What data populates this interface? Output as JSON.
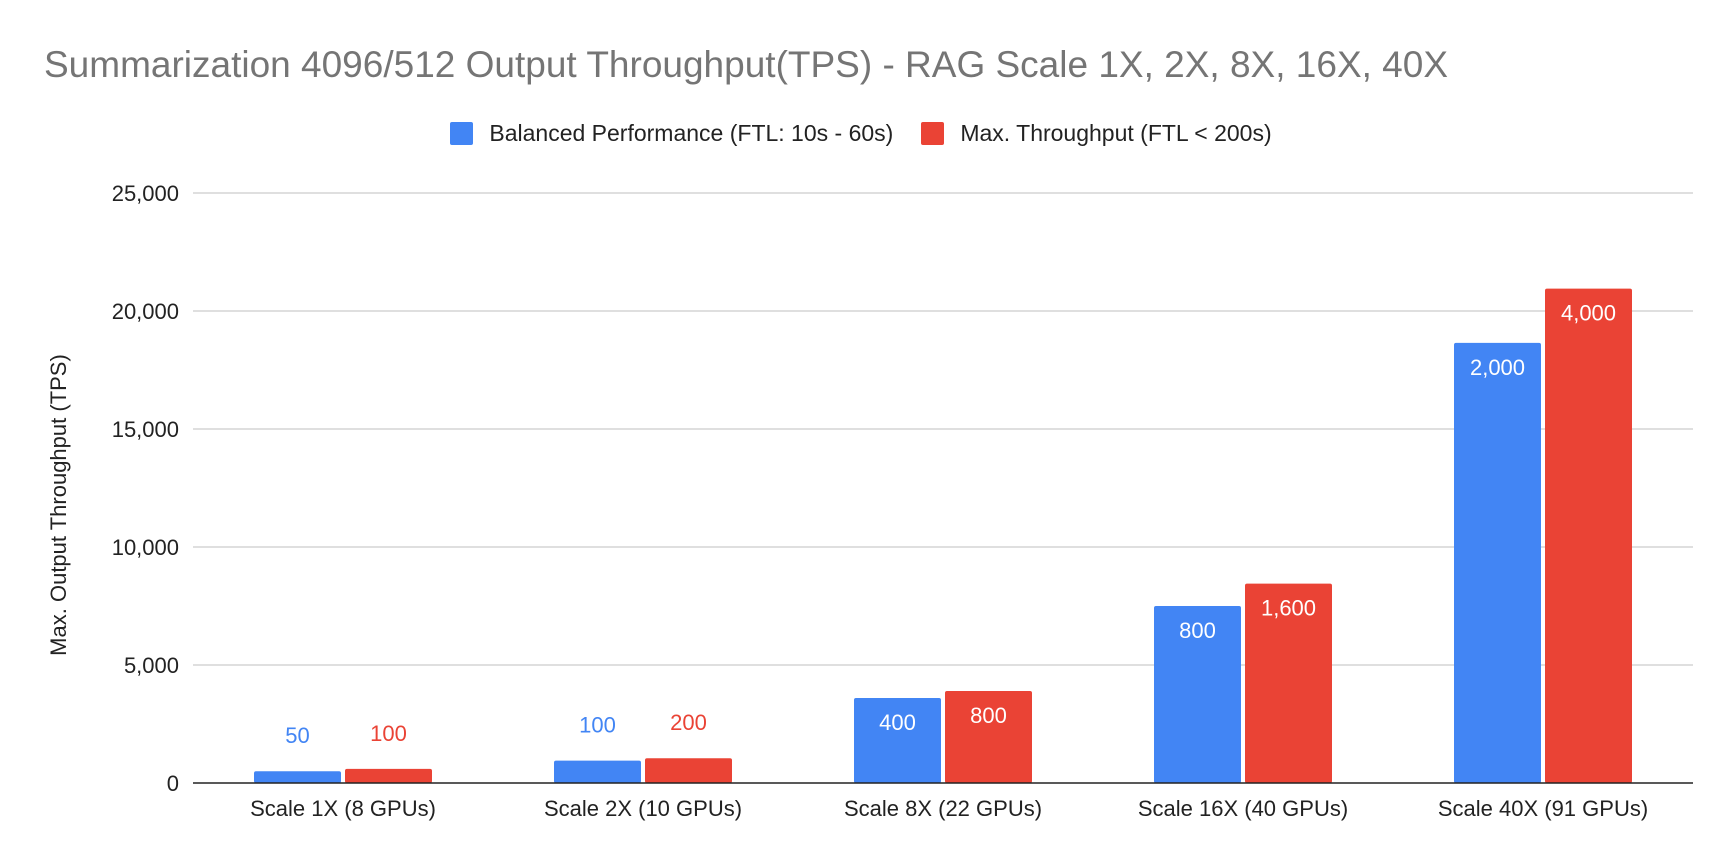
{
  "chart_data": {
    "type": "bar",
    "title": "Summarization 4096/512 Output Throughput(TPS) - RAG Scale 1X, 2X, 8X, 16X, 40X",
    "xlabel": "",
    "ylabel": "Max. Output Throughput (TPS)",
    "ylim": [
      0,
      25000
    ],
    "yticks": [
      "0",
      "5,000",
      "10,000",
      "15,000",
      "20,000",
      "25,000"
    ],
    "grid": true,
    "legend_position": "top",
    "categories": [
      "Scale 1X (8 GPUs)",
      "Scale 2X (10 GPUs)",
      "Scale 8X (22 GPUs)",
      "Scale 16X (40 GPUs)",
      "Scale 40X (91 GPUs)"
    ],
    "series": [
      {
        "name": "Balanced Performance (FTL: 10s - 60s)",
        "color": "#4285F4",
        "values": [
          500,
          950,
          3600,
          7500,
          18650
        ],
        "data_labels": [
          "50",
          "100",
          "400",
          "800",
          "2,000"
        ]
      },
      {
        "name": "Max. Throughput (FTL < 200s)",
        "color": "#EA4335",
        "values": [
          600,
          1050,
          3900,
          8450,
          20950
        ],
        "data_labels": [
          "100",
          "200",
          "800",
          "1,600",
          "4,000"
        ]
      }
    ]
  }
}
